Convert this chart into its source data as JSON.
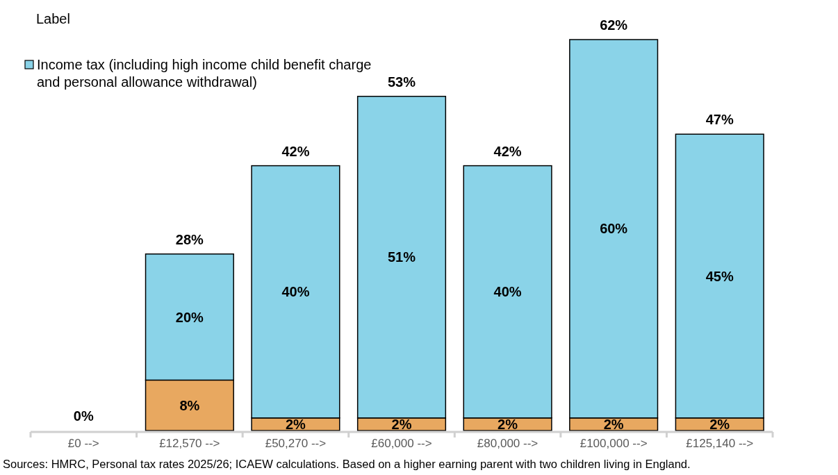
{
  "chart_data": {
    "type": "bar",
    "stacked": true,
    "legend_title": "Label",
    "legend": "top left",
    "categories": [
      "£0 -->",
      "£12,570 -->",
      "£50,270 -->",
      "£60,000 -->",
      "£80,000 -->",
      "£100,000 -->",
      "£125,140 -->"
    ],
    "series": [
      {
        "color": "#e8a860",
        "values": [
          0,
          8,
          2,
          2,
          2,
          2,
          2
        ],
        "value_labels": [
          null,
          "8%",
          "2%",
          "2%",
          "2%",
          "2%",
          "2%"
        ]
      },
      {
        "name": "Income tax (including high income child benefit charge and personal allowance withdrawal)",
        "color": "#8ad3e8",
        "values": [
          0,
          20,
          40,
          51,
          40,
          60,
          45
        ],
        "value_labels": [
          null,
          "20%",
          "40%",
          "51%",
          "40%",
          "60%",
          "45%"
        ]
      }
    ],
    "totals": [
      "0%",
      "28%",
      "42%",
      "53%",
      "42%",
      "62%",
      "47%"
    ],
    "annotations": [
      "Sources: HMRC, Personal tax rates 2025/26; ICAEW calculations. Based on a higher earning parent with two children living in England."
    ]
  }
}
